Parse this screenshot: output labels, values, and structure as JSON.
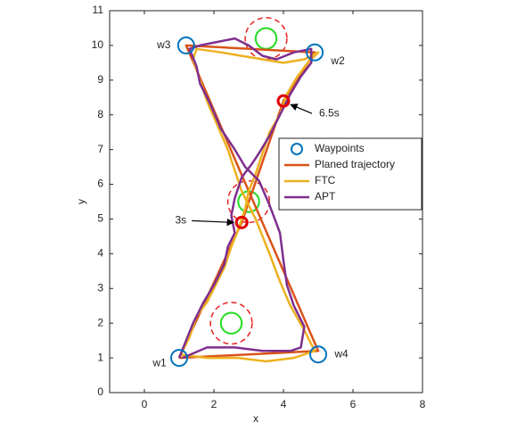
{
  "chart_data": {
    "type": "line",
    "xlabel": "x",
    "ylabel": "y",
    "xlim": [
      -1,
      8
    ],
    "ylim": [
      0,
      11
    ],
    "xticks": [
      0,
      2,
      4,
      6,
      8
    ],
    "yticks": [
      0,
      1,
      2,
      3,
      4,
      5,
      6,
      7,
      8,
      9,
      10,
      11
    ],
    "legend": "right",
    "series": [
      {
        "name": "Waypoints",
        "color": "#0072bd",
        "marker": "circle",
        "x": [
          1.0,
          4.9,
          1.2,
          5.0
        ],
        "y": [
          1.0,
          9.8,
          10.0,
          1.1
        ],
        "labels": [
          "w1",
          "w2",
          "w3",
          "w4"
        ]
      },
      {
        "name": "Planed trajectory",
        "color": "#d95319",
        "x": [
          1.0,
          2.8,
          4.0,
          4.9,
          1.2,
          2.7,
          5.0,
          1.0
        ],
        "y": [
          1.0,
          4.9,
          8.4,
          9.8,
          10.0,
          6.5,
          1.2,
          1.0
        ]
      },
      {
        "name": "FTC",
        "color": "#edb120",
        "x": [
          1.0,
          1.3,
          1.5,
          1.8,
          2.0,
          2.3,
          2.5,
          2.7,
          2.9,
          3.0,
          3.2,
          3.4,
          3.6,
          3.9,
          4.1,
          4.4,
          4.7,
          5.0,
          4.6,
          4.0,
          3.4,
          2.8,
          2.2,
          1.5,
          1.4,
          1.6,
          1.8,
          2.1,
          2.4,
          2.6,
          2.8,
          3.2,
          3.6,
          3.9,
          4.2,
          4.6,
          4.9,
          4.3,
          3.5,
          2.7,
          1.8,
          1.0
        ],
        "y": [
          1.0,
          1.6,
          2.2,
          2.6,
          3.0,
          3.6,
          4.2,
          4.7,
          5.3,
          5.8,
          6.3,
          6.9,
          7.5,
          8.0,
          8.6,
          9.1,
          9.5,
          9.8,
          9.6,
          9.5,
          9.6,
          9.7,
          9.8,
          9.9,
          9.6,
          9.0,
          8.4,
          7.7,
          7.0,
          6.4,
          5.8,
          5.0,
          4.0,
          3.2,
          2.5,
          1.8,
          1.2,
          1.0,
          0.9,
          1.0,
          1.0,
          1.1
        ]
      },
      {
        "name": "APT",
        "color": "#7e2f8e",
        "x": [
          1.0,
          1.2,
          1.4,
          1.7,
          2.0,
          2.3,
          2.4,
          2.6,
          2.5,
          2.6,
          2.8,
          3.1,
          3.3,
          3.6,
          3.9,
          4.2,
          4.5,
          4.8,
          4.8,
          4.3,
          3.8,
          3.4,
          3.0,
          2.6,
          2.1,
          1.6,
          1.3,
          1.5,
          1.6,
          1.9,
          2.2,
          2.6,
          2.9,
          3.3,
          3.6,
          3.9,
          4.0,
          4.1,
          4.3,
          4.6,
          4.5,
          4.2,
          3.4,
          2.6,
          1.8,
          1.1
        ],
        "y": [
          1.0,
          1.5,
          2.0,
          2.6,
          3.1,
          3.7,
          4.2,
          4.6,
          5.1,
          5.6,
          6.2,
          6.6,
          6.9,
          7.4,
          8.0,
          8.6,
          9.1,
          9.5,
          9.9,
          9.8,
          9.6,
          9.7,
          10.0,
          10.2,
          10.1,
          10.0,
          9.9,
          9.4,
          8.9,
          8.3,
          7.6,
          7.0,
          6.5,
          6.1,
          5.4,
          4.6,
          3.8,
          3.1,
          2.5,
          1.9,
          1.3,
          1.2,
          1.2,
          1.3,
          1.3,
          1.0
        ]
      }
    ],
    "obstacles": {
      "x": [
        2.5,
        3.0,
        3.5
      ],
      "y": [
        2.0,
        5.5,
        10.2
      ],
      "radius": 0.3,
      "safe_radius": 0.6,
      "color": "#22dd22",
      "ring_color": "#e82020"
    },
    "annotations": [
      {
        "text": "3s",
        "x": 2.8,
        "y": 4.9,
        "color": "#e00000"
      },
      {
        "text": "6.5s",
        "x": 4.0,
        "y": 8.4,
        "color": "#e00000"
      }
    ]
  }
}
